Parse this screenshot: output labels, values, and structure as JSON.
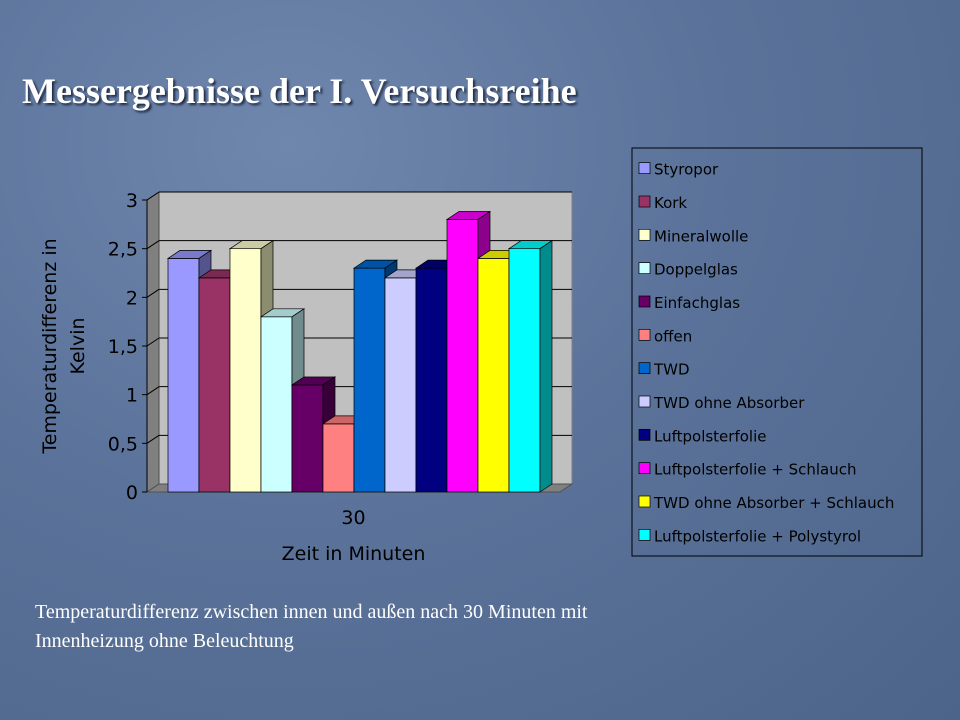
{
  "slide": {
    "title": "Messergebnisse der I. Versuchsreihe",
    "caption": "Temperaturdifferenz zwischen innen und außen nach 30 Minuten mit Innenheizung ohne Beleuchtung"
  },
  "chart_data": {
    "type": "bar",
    "categories": [
      "30"
    ],
    "xlabel": "Zeit in Minuten",
    "ylabel": "Temperaturdifferenz in Kelvin",
    "ylim": [
      0,
      3
    ],
    "yticks": [
      "0",
      "0,5",
      "1",
      "1,5",
      "2",
      "2,5",
      "3"
    ],
    "grid": true,
    "legend_position": "right",
    "series": [
      {
        "name": "Styropor",
        "value": 2.4,
        "color": "#9999ff"
      },
      {
        "name": "Kork",
        "value": 2.2,
        "color": "#993366"
      },
      {
        "name": "Mineralwolle",
        "value": 2.5,
        "color": "#ffffcc"
      },
      {
        "name": "Doppelglas",
        "value": 1.8,
        "color": "#ccffff"
      },
      {
        "name": "Einfachglas",
        "value": 1.1,
        "color": "#660066"
      },
      {
        "name": "offen",
        "value": 0.7,
        "color": "#ff8080"
      },
      {
        "name": "TWD",
        "value": 2.3,
        "color": "#0066cc"
      },
      {
        "name": "TWD ohne Absorber",
        "value": 2.2,
        "color": "#ccccff"
      },
      {
        "name": "Luftpolsterfolie",
        "value": 2.3,
        "color": "#000080"
      },
      {
        "name": "Luftpolsterfolie + Schlauch",
        "value": 2.8,
        "color": "#ff00ff"
      },
      {
        "name": "TWD ohne Absorber + Schlauch",
        "value": 2.4,
        "color": "#ffff00"
      },
      {
        "name": "Luftpolsterfolie + Polystyrol",
        "value": 2.5,
        "color": "#00ffff"
      }
    ]
  }
}
